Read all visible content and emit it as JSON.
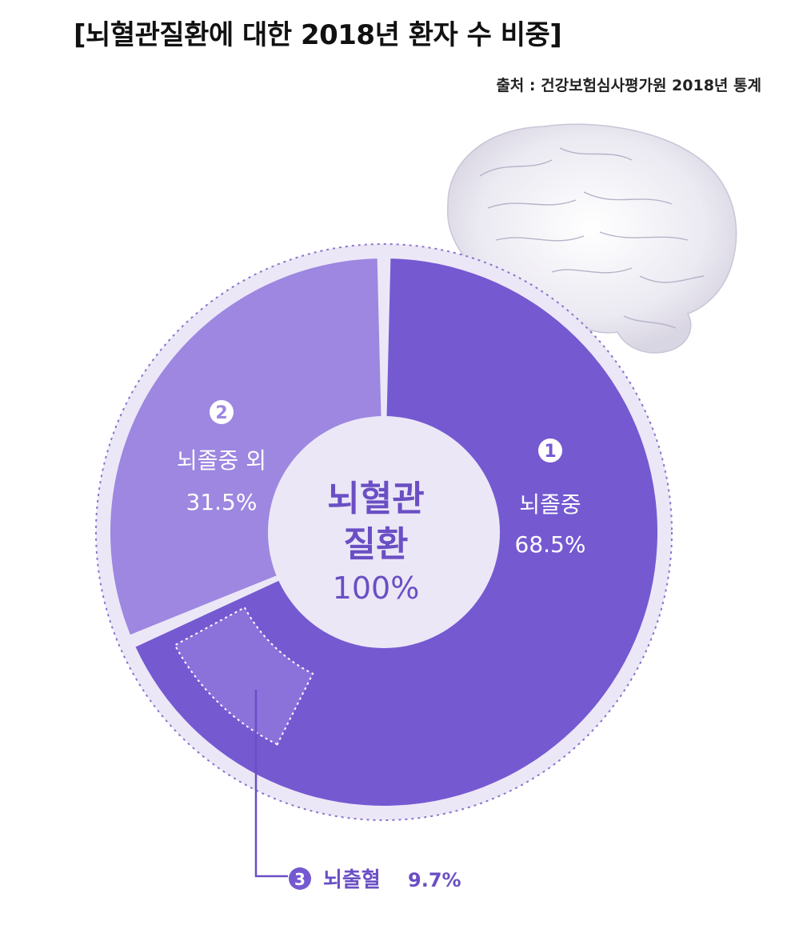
{
  "header": {
    "title": "[뇌혈관질환에 대한 2018년 환자 수 비중]",
    "source": "출처 : 건강보험심사평가원 2018년 통계"
  },
  "colors": {
    "stroke_segment": "#7559d1",
    "other_segment": "#9d87e0",
    "hemorrhage_segment": "#8b72db",
    "ring_background": "#ece7f7",
    "center_text": "#6a4fc4",
    "white": "#ffffff"
  },
  "decorations": {
    "brain": "brain-illustration"
  },
  "chart_data": {
    "type": "pie",
    "center": {
      "line1": "뇌혈관",
      "line2": "질환",
      "value": "100%"
    },
    "slices": [
      {
        "num": "1",
        "label": "뇌졸중",
        "value": 68.5,
        "value_text": "68.5%"
      },
      {
        "num": "2",
        "label": "뇌졸중 외",
        "value": 31.5,
        "value_text": "31.5%"
      }
    ],
    "sub_slice": {
      "num": "3",
      "label": "뇌출혈",
      "value": 9.7,
      "value_text": "9.7%",
      "parent": "뇌졸중"
    }
  }
}
